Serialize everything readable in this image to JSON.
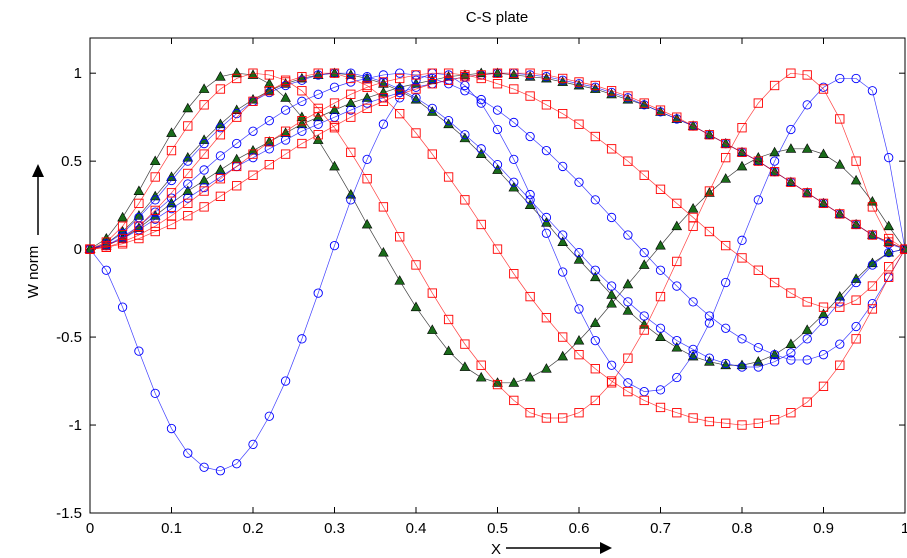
{
  "chart_data": {
    "type": "line",
    "title": "C-S plate",
    "xlabel": "X",
    "ylabel": "W norm",
    "xlim": [
      0,
      1
    ],
    "ylim": [
      -1.5,
      1.2
    ],
    "grid": false,
    "legend": "none",
    "x_ticks": [
      "0",
      "0.1",
      "0.2",
      "0.3",
      "0.4",
      "0.5",
      "0.6",
      "0.7",
      "0.8",
      "0.9",
      "1"
    ],
    "y_ticks": [
      "-1.5",
      "-1",
      "-0.5",
      "0",
      "0.5",
      "1"
    ],
    "x": [
      0,
      0.02,
      0.04,
      0.06,
      0.08,
      0.1,
      0.12,
      0.14,
      0.16,
      0.18,
      0.2,
      0.22,
      0.24,
      0.26,
      0.28,
      0.3,
      0.32,
      0.34,
      0.36,
      0.38,
      0.4,
      0.42,
      0.44,
      0.46,
      0.48,
      0.5,
      0.52,
      0.54,
      0.56,
      0.58,
      0.6,
      0.62,
      0.64,
      0.66,
      0.68,
      0.7,
      0.72,
      0.74,
      0.76,
      0.78,
      0.8,
      0.82,
      0.84,
      0.86,
      0.88,
      0.9,
      0.92,
      0.94,
      0.96,
      0.98,
      1
    ],
    "series": [
      {
        "marker": "triangle",
        "color": "#000000",
        "fill": "#1a6b1a",
        "values": [
          0,
          0.02,
          0.06,
          0.12,
          0.19,
          0.26,
          0.33,
          0.39,
          0.45,
          0.51,
          0.56,
          0.61,
          0.66,
          0.71,
          0.75,
          0.79,
          0.83,
          0.86,
          0.89,
          0.92,
          0.94,
          0.96,
          0.98,
          0.99,
          1,
          1,
          0.99,
          0.98,
          0.97,
          0.95,
          0.93,
          0.91,
          0.88,
          0.85,
          0.82,
          0.78,
          0.74,
          0.7,
          0.65,
          0.6,
          0.55,
          0.5,
          0.44,
          0.38,
          0.32,
          0.26,
          0.2,
          0.14,
          0.08,
          0.04,
          0
        ]
      },
      {
        "marker": "triangle",
        "color": "#000000",
        "fill": "#1a6b1a",
        "values": [
          0,
          0.06,
          0.18,
          0.33,
          0.5,
          0.66,
          0.8,
          0.91,
          0.98,
          1,
          0.99,
          0.94,
          0.86,
          0.75,
          0.62,
          0.47,
          0.31,
          0.14,
          -0.02,
          -0.18,
          -0.33,
          -0.46,
          -0.58,
          -0.67,
          -0.73,
          -0.76,
          -0.76,
          -0.73,
          -0.68,
          -0.61,
          -0.52,
          -0.42,
          -0.31,
          -0.2,
          -0.09,
          0.02,
          0.13,
          0.23,
          0.32,
          0.4,
          0.47,
          0.52,
          0.55,
          0.57,
          0.57,
          0.54,
          0.48,
          0.39,
          0.27,
          0.13,
          0
        ]
      },
      {
        "marker": "triangle",
        "color": "#000000",
        "fill": "#1a6b1a",
        "values": [
          0,
          0.03,
          0.1,
          0.19,
          0.3,
          0.41,
          0.52,
          0.62,
          0.71,
          0.79,
          0.85,
          0.9,
          0.94,
          0.97,
          0.99,
          1,
          0.99,
          0.97,
          0.94,
          0.9,
          0.85,
          0.78,
          0.71,
          0.63,
          0.54,
          0.45,
          0.35,
          0.25,
          0.15,
          0.04,
          -0.06,
          -0.16,
          -0.26,
          -0.35,
          -0.43,
          -0.5,
          -0.56,
          -0.61,
          -0.64,
          -0.66,
          -0.66,
          -0.64,
          -0.6,
          -0.54,
          -0.46,
          -0.37,
          -0.27,
          -0.17,
          -0.08,
          -0.02,
          0
        ]
      },
      {
        "marker": "circle",
        "color": "#0000ff",
        "fill": "none",
        "values": [
          0,
          0.02,
          0.06,
          0.11,
          0.17,
          0.23,
          0.29,
          0.35,
          0.41,
          0.47,
          0.52,
          0.57,
          0.62,
          0.67,
          0.71,
          0.75,
          0.79,
          0.83,
          0.86,
          0.89,
          0.92,
          0.94,
          0.96,
          0.98,
          0.99,
          1,
          1,
          0.99,
          0.98,
          0.96,
          0.94,
          0.92,
          0.89,
          0.86,
          0.82,
          0.78,
          0.74,
          0.7,
          0.65,
          0.6,
          0.55,
          0.5,
          0.44,
          0.38,
          0.32,
          0.26,
          0.2,
          0.14,
          0.08,
          0.03,
          0
        ]
      },
      {
        "marker": "circle",
        "color": "#0000ff",
        "fill": "none",
        "values": [
          0,
          -0.12,
          -0.33,
          -0.58,
          -0.82,
          -1.02,
          -1.16,
          -1.24,
          -1.26,
          -1.22,
          -1.11,
          -0.95,
          -0.75,
          -0.51,
          -0.25,
          0.02,
          0.28,
          0.51,
          0.71,
          0.86,
          0.96,
          1,
          0.99,
          0.93,
          0.83,
          0.68,
          0.51,
          0.31,
          0.09,
          -0.13,
          -0.34,
          -0.52,
          -0.66,
          -0.76,
          -0.81,
          -0.8,
          -0.73,
          -0.6,
          -0.42,
          -0.19,
          0.05,
          0.28,
          0.5,
          0.68,
          0.82,
          0.92,
          0.97,
          0.97,
          0.9,
          0.52,
          0
        ]
      },
      {
        "marker": "circle",
        "color": "#0000ff",
        "fill": "none",
        "values": [
          0,
          0.03,
          0.09,
          0.18,
          0.28,
          0.39,
          0.5,
          0.6,
          0.69,
          0.77,
          0.84,
          0.89,
          0.93,
          0.96,
          0.99,
          1,
          1,
          0.98,
          0.95,
          0.91,
          0.86,
          0.8,
          0.73,
          0.65,
          0.57,
          0.48,
          0.38,
          0.28,
          0.18,
          0.08,
          -0.02,
          -0.12,
          -0.21,
          -0.3,
          -0.38,
          -0.45,
          -0.52,
          -0.57,
          -0.62,
          -0.65,
          -0.67,
          -0.67,
          -0.64,
          -0.59,
          -0.51,
          -0.41,
          -0.3,
          -0.19,
          -0.09,
          -0.02,
          0
        ]
      },
      {
        "marker": "circle",
        "color": "#0000ff",
        "fill": "none",
        "values": [
          0,
          0.02,
          0.07,
          0.13,
          0.21,
          0.29,
          0.37,
          0.45,
          0.53,
          0.6,
          0.67,
          0.73,
          0.79,
          0.84,
          0.88,
          0.92,
          0.95,
          0.97,
          0.99,
          1,
          0.99,
          0.97,
          0.94,
          0.9,
          0.85,
          0.79,
          0.72,
          0.64,
          0.56,
          0.47,
          0.38,
          0.28,
          0.18,
          0.08,
          -0.02,
          -0.12,
          -0.21,
          -0.3,
          -0.38,
          -0.45,
          -0.51,
          -0.56,
          -0.6,
          -0.63,
          -0.63,
          -0.6,
          -0.54,
          -0.44,
          -0.31,
          -0.16,
          0
        ]
      },
      {
        "marker": "square",
        "color": "#ff0000",
        "fill": "none",
        "values": [
          0,
          0.01,
          0.03,
          0.06,
          0.1,
          0.14,
          0.19,
          0.24,
          0.3,
          0.36,
          0.42,
          0.48,
          0.54,
          0.6,
          0.65,
          0.7,
          0.75,
          0.8,
          0.84,
          0.88,
          0.91,
          0.94,
          0.96,
          0.98,
          0.99,
          1,
          1,
          1,
          0.99,
          0.97,
          0.95,
          0.93,
          0.9,
          0.87,
          0.83,
          0.79,
          0.75,
          0.7,
          0.65,
          0.6,
          0.55,
          0.5,
          0.44,
          0.38,
          0.32,
          0.26,
          0.2,
          0.14,
          0.08,
          0.04,
          0
        ]
      },
      {
        "marker": "square",
        "color": "#ff0000",
        "fill": "none",
        "values": [
          0,
          0.04,
          0.13,
          0.26,
          0.41,
          0.56,
          0.7,
          0.82,
          0.91,
          0.97,
          1,
          0.99,
          0.96,
          0.9,
          0.8,
          0.69,
          0.55,
          0.4,
          0.24,
          0.07,
          -0.09,
          -0.25,
          -0.4,
          -0.54,
          -0.66,
          -0.77,
          -0.86,
          -0.93,
          -0.96,
          -0.96,
          -0.93,
          -0.86,
          -0.76,
          -0.62,
          -0.46,
          -0.27,
          -0.07,
          0.13,
          0.33,
          0.52,
          0.69,
          0.83,
          0.93,
          1,
          0.99,
          0.91,
          0.74,
          0.5,
          0.24,
          0.06,
          0
        ]
      },
      {
        "marker": "square",
        "color": "#ff0000",
        "fill": "none",
        "values": [
          0,
          0.01,
          0.04,
          0.08,
          0.13,
          0.19,
          0.26,
          0.33,
          0.4,
          0.47,
          0.54,
          0.61,
          0.67,
          0.73,
          0.78,
          0.83,
          0.88,
          0.92,
          0.95,
          0.97,
          0.99,
          1,
          1,
          0.99,
          0.97,
          0.94,
          0.91,
          0.87,
          0.82,
          0.77,
          0.71,
          0.64,
          0.57,
          0.5,
          0.42,
          0.34,
          0.26,
          0.18,
          0.1,
          0.02,
          -0.05,
          -0.12,
          -0.19,
          -0.25,
          -0.3,
          -0.33,
          -0.33,
          -0.29,
          -0.21,
          -0.1,
          0
        ]
      },
      {
        "marker": "square",
        "color": "#ff0000",
        "fill": "none",
        "values": [
          0,
          0.02,
          0.06,
          0.13,
          0.22,
          0.32,
          0.43,
          0.54,
          0.65,
          0.75,
          0.84,
          0.9,
          0.95,
          0.98,
          1,
          1,
          0.97,
          0.93,
          0.86,
          0.77,
          0.66,
          0.54,
          0.41,
          0.28,
          0.14,
          0,
          -0.14,
          -0.27,
          -0.39,
          -0.5,
          -0.6,
          -0.68,
          -0.75,
          -0.81,
          -0.86,
          -0.9,
          -0.93,
          -0.96,
          -0.98,
          -0.99,
          -1,
          -0.99,
          -0.97,
          -0.93,
          -0.87,
          -0.78,
          -0.66,
          -0.51,
          -0.34,
          -0.16,
          0
        ]
      }
    ]
  }
}
